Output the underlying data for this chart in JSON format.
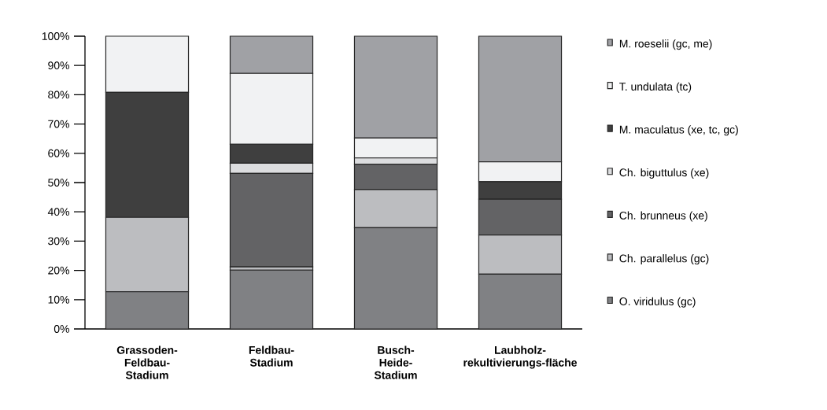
{
  "chart_data": {
    "type": "bar",
    "stacked": true,
    "legend": "right",
    "categories": [
      "Grassoden-Feldbau-Stadium",
      "Feldbau-Stadium",
      "Busch-Heide-Stadium",
      "Laubholz-rekultivierungs-fläche"
    ],
    "series": [
      {
        "name": "O. viridulus (gc)",
        "color": "#808184",
        "values": [
          12.7,
          20.1,
          34.6,
          18.7
        ]
      },
      {
        "name": "Ch. parallelus (gc)",
        "color": "#bcbdc0",
        "values": [
          25.4,
          1.1,
          13.0,
          13.4
        ]
      },
      {
        "name": "Ch. brunneus (xe)",
        "color": "#636365",
        "values": [
          0,
          31.9,
          8.7,
          12.2
        ]
      },
      {
        "name": "Ch. biguttulus (xe)",
        "color": "#dcdddf",
        "values": [
          0,
          3.5,
          2.1,
          0
        ]
      },
      {
        "name": "M. maculatus (xe, tc, gc)",
        "color": "#3f3f3f",
        "values": [
          42.7,
          6.5,
          0,
          6.0
        ]
      },
      {
        "name": "T. undulata (tc)",
        "color": "#f1f2f3",
        "values": [
          19.2,
          24.2,
          6.8,
          6.8
        ]
      },
      {
        "name": "M. roeselii (gc, me)",
        "color": "#a0a1a5",
        "values": [
          0,
          12.7,
          34.8,
          42.9
        ]
      }
    ],
    "ylim": [
      0,
      100
    ],
    "yticks": [
      {
        "value": 0,
        "label": "0%"
      },
      {
        "value": 10,
        "label": "10%"
      },
      {
        "value": 20,
        "label": "20%"
      },
      {
        "value": 30,
        "label": "30%"
      },
      {
        "value": 40,
        "label": "40%"
      },
      {
        "value": 50,
        "label": "50%"
      },
      {
        "value": 60,
        "label": "60%"
      },
      {
        "value": 70,
        "label": "70%"
      },
      {
        "value": 80,
        "label": "80%"
      },
      {
        "value": 90,
        "label": "90%"
      },
      {
        "value": 100,
        "label": "100%"
      }
    ]
  }
}
